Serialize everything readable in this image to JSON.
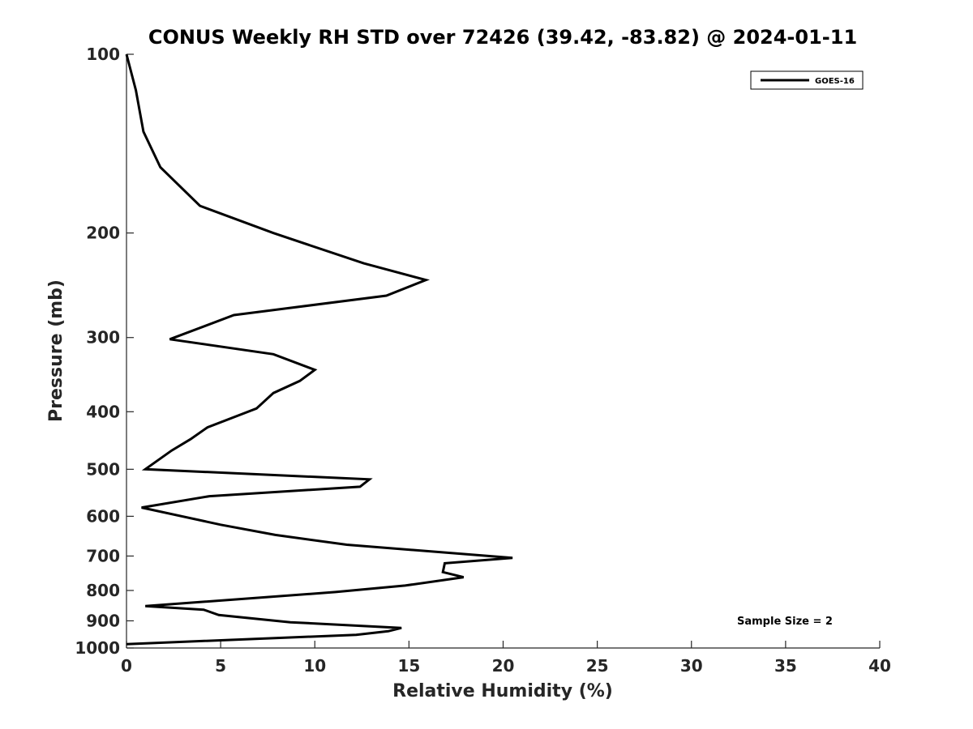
{
  "chart_data": {
    "type": "line",
    "title": "CONUS Weekly RH STD over 72426 (39.42, -83.82) @ 2024-01-11",
    "xlabel": "Relative Humidity (%)",
    "ylabel": "Pressure (mb)",
    "xlim": [
      0,
      40
    ],
    "ylim": [
      100,
      1000
    ],
    "y_scale": "log",
    "y_reversed": true,
    "x_ticks": [
      0,
      5,
      10,
      15,
      20,
      25,
      30,
      35,
      40
    ],
    "y_ticks": [
      100,
      200,
      300,
      400,
      500,
      600,
      700,
      800,
      900,
      1000
    ],
    "grid": false,
    "legend_position": "top-right",
    "annotation": "Sample Size = 2",
    "series": [
      {
        "name": "GOES-16",
        "color": "#000000",
        "points": [
          [
            0.0,
            100
          ],
          [
            0.5,
            115
          ],
          [
            0.9,
            135
          ],
          [
            1.8,
            155
          ],
          [
            3.9,
            180
          ],
          [
            7.8,
            200
          ],
          [
            12.6,
            225
          ],
          [
            15.9,
            240
          ],
          [
            13.8,
            255
          ],
          [
            5.7,
            275
          ],
          [
            2.3,
            302
          ],
          [
            7.8,
            320
          ],
          [
            10.0,
            340
          ],
          [
            9.2,
            355
          ],
          [
            7.8,
            372
          ],
          [
            6.9,
            395
          ],
          [
            4.3,
            425
          ],
          [
            3.4,
            445
          ],
          [
            2.4,
            465
          ],
          [
            1.0,
            500
          ],
          [
            12.9,
            520
          ],
          [
            12.4,
            535
          ],
          [
            4.4,
            555
          ],
          [
            0.8,
            580
          ],
          [
            5.0,
            620
          ],
          [
            7.9,
            645
          ],
          [
            11.7,
            670
          ],
          [
            20.5,
            705
          ],
          [
            16.9,
            720
          ],
          [
            16.8,
            745
          ],
          [
            17.9,
            760
          ],
          [
            14.8,
            785
          ],
          [
            11.1,
            805
          ],
          [
            1.0,
            850
          ],
          [
            4.1,
            862
          ],
          [
            4.9,
            880
          ],
          [
            8.7,
            905
          ],
          [
            14.6,
            925
          ],
          [
            13.9,
            937
          ],
          [
            12.2,
            950
          ],
          [
            0.0,
            985
          ]
        ]
      }
    ]
  }
}
